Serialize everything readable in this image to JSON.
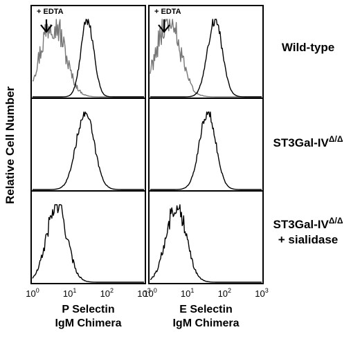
{
  "chart_data": {
    "type": "area",
    "figure": "flow cytometry histograms",
    "ylabel": "Relative Cell Number",
    "x_scale": "log",
    "xlim": [
      1,
      1000
    ],
    "x_ticks": [
      {
        "base": "10",
        "exp": "0"
      },
      {
        "base": "10",
        "exp": "1"
      },
      {
        "base": "10",
        "exp": "2"
      },
      {
        "base": "10",
        "exp": "3"
      }
    ],
    "columns": [
      {
        "xlabel_line1": "P Selectin",
        "xlabel_line2": "IgM Chimera",
        "annotation": "+ EDTA"
      },
      {
        "xlabel_line1": "E Selectin",
        "xlabel_line2": "IgM Chimera",
        "annotation": "+ EDTA"
      }
    ],
    "rows": [
      {
        "label_line1": "Wild-type",
        "label_line2": "",
        "superscript": ""
      },
      {
        "label_line1": "ST3Gal-IV",
        "label_line2": "",
        "superscript": "Δ/Δ"
      },
      {
        "label_line1": "ST3Gal-IV",
        "label_line2": "+ sialidase",
        "superscript": "Δ/Δ"
      }
    ],
    "histograms": [
      {
        "column": 0,
        "row": 0,
        "series": [
          {
            "color": "#777777",
            "peak_x": 3.5,
            "log_sd": 0.32,
            "rough": 0.5
          },
          {
            "color": "#000000",
            "peak_x": 30,
            "log_sd": 0.17,
            "rough": 0.15
          }
        ]
      },
      {
        "column": 0,
        "row": 1,
        "series": [
          {
            "color": "#000000",
            "peak_x": 26,
            "log_sd": 0.24,
            "rough": 0.15
          }
        ]
      },
      {
        "column": 0,
        "row": 2,
        "series": [
          {
            "color": "#000000",
            "peak_x": 4.5,
            "log_sd": 0.27,
            "rough": 0.3
          }
        ]
      },
      {
        "column": 1,
        "row": 0,
        "series": [
          {
            "color": "#777777",
            "peak_x": 3.0,
            "log_sd": 0.32,
            "rough": 0.5
          },
          {
            "color": "#000000",
            "peak_x": 55,
            "log_sd": 0.2,
            "rough": 0.15
          }
        ]
      },
      {
        "column": 1,
        "row": 1,
        "series": [
          {
            "color": "#000000",
            "peak_x": 35,
            "log_sd": 0.22,
            "rough": 0.15
          }
        ]
      },
      {
        "column": 1,
        "row": 2,
        "series": [
          {
            "color": "#000000",
            "peak_x": 5,
            "log_sd": 0.27,
            "rough": 0.3
          }
        ]
      }
    ]
  }
}
